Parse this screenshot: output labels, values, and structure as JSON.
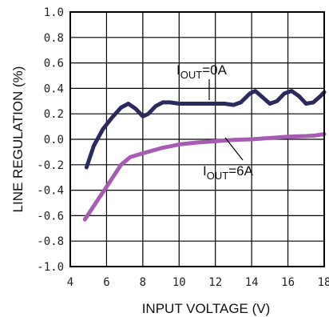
{
  "chart_data": {
    "type": "line",
    "xlabel": "INPUT VOLTAGE (V)",
    "ylabel": "LINE REGULATION (%)",
    "xlim": [
      4,
      18
    ],
    "ylim": [
      -1.0,
      1.0
    ],
    "x_ticks": [
      "4",
      "6",
      "8",
      "10",
      "12",
      "14",
      "16",
      "18"
    ],
    "y_ticks": [
      "1.0",
      "0.8",
      "0.6",
      "0.4",
      "0.2",
      "0.0",
      "-0.2",
      "-0.4",
      "-0.6",
      "-0.8",
      "-1.0"
    ],
    "grid": true,
    "series": [
      {
        "name_main": "I",
        "name_sub": "OUT",
        "name_rest": "=0A",
        "color": "#2a2a5e",
        "x": [
          4.9,
          5.3,
          5.8,
          6.3,
          6.8,
          7.2,
          7.6,
          8.0,
          8.3,
          8.7,
          9.1,
          9.5,
          10.0,
          10.5,
          11.0,
          11.5,
          12.0,
          12.5,
          13.0,
          13.4,
          13.9,
          14.2,
          14.6,
          15.0,
          15.4,
          15.8,
          16.2,
          16.6,
          17.0,
          17.4,
          17.8,
          18.0
        ],
        "y": [
          -0.22,
          -0.05,
          0.08,
          0.17,
          0.25,
          0.28,
          0.24,
          0.18,
          0.2,
          0.26,
          0.29,
          0.29,
          0.28,
          0.28,
          0.28,
          0.28,
          0.28,
          0.28,
          0.27,
          0.29,
          0.36,
          0.38,
          0.33,
          0.28,
          0.3,
          0.36,
          0.38,
          0.34,
          0.28,
          0.29,
          0.34,
          0.37
        ]
      },
      {
        "name_main": "I",
        "name_sub": "OUT",
        "name_rest": "=6A",
        "color": "#a65cb3",
        "x": [
          4.8,
          5.5,
          6.2,
          6.8,
          7.3,
          8.0,
          9.0,
          10.0,
          11.0,
          12.0,
          13.0,
          14.0,
          15.0,
          16.0,
          17.0,
          17.5,
          18.0
        ],
        "y": [
          -0.63,
          -0.48,
          -0.33,
          -0.2,
          -0.14,
          -0.11,
          -0.07,
          -0.04,
          -0.025,
          -0.015,
          -0.005,
          0.0,
          0.01,
          0.02,
          0.025,
          0.03,
          0.04
        ]
      }
    ]
  }
}
